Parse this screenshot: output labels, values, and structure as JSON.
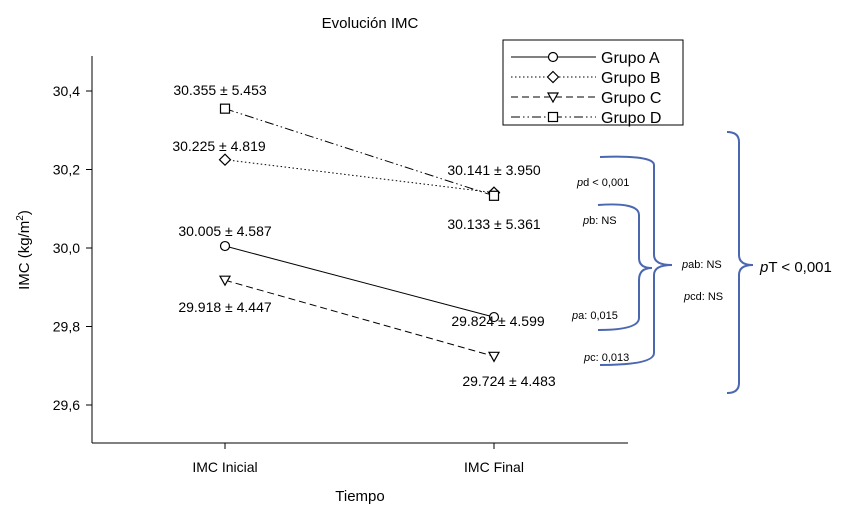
{
  "chart_data": {
    "type": "line",
    "title": "Evolución IMC",
    "xlabel": "Tiempo",
    "ylabel": "IMC (kg/m",
    "ylabel_sup": "2",
    "ylabel_end": ")",
    "categories": [
      "IMC Inicial",
      "IMC Final"
    ],
    "ylim": [
      29.5,
      30.5
    ],
    "yticks": [
      {
        "v": 29.6,
        "label": "29,6"
      },
      {
        "v": 29.8,
        "label": "29,8"
      },
      {
        "v": 30.0,
        "label": "30,0"
      },
      {
        "v": 30.2,
        "label": "30,2"
      },
      {
        "v": 30.4,
        "label": "30,4"
      }
    ],
    "grid": false,
    "legend_position": "top-right",
    "series": [
      {
        "name": "Grupo A",
        "marker": "circle",
        "dash": "solid",
        "values": [
          30.005,
          29.824
        ],
        "labels": [
          "30.005 ± 4.587",
          "29.824 ± 4.599"
        ]
      },
      {
        "name": "Grupo B",
        "marker": "diamond",
        "dash": "dotted",
        "values": [
          30.225,
          30.141
        ],
        "labels": [
          "30.225 ± 4.819",
          "30.141 ± 3.950"
        ]
      },
      {
        "name": "Grupo C",
        "marker": "triangle-down",
        "dash": "dashed",
        "values": [
          29.918,
          29.724
        ],
        "labels": [
          "29.918 ± 4.447",
          "29.724 ± 4.483"
        ]
      },
      {
        "name": "Grupo D",
        "marker": "square",
        "dash": "dash-dot",
        "values": [
          30.355,
          30.133
        ],
        "labels": [
          "30.355 ± 5.453",
          "30.133 ± 5.361"
        ]
      }
    ],
    "annotations": [
      {
        "italic": "p",
        "rest": "d < 0,001"
      },
      {
        "italic": "p",
        "rest": "b: NS"
      },
      {
        "italic": "p",
        "rest": "a: 0,015"
      },
      {
        "italic": "p",
        "rest": "c: 0,013"
      },
      {
        "italic": "p",
        "rest": "ab: NS"
      },
      {
        "italic": "p",
        "rest": "cd: NS"
      },
      {
        "italic": "p",
        "rest": "T < 0,001"
      }
    ],
    "bracket_color": "#4a67b0"
  }
}
